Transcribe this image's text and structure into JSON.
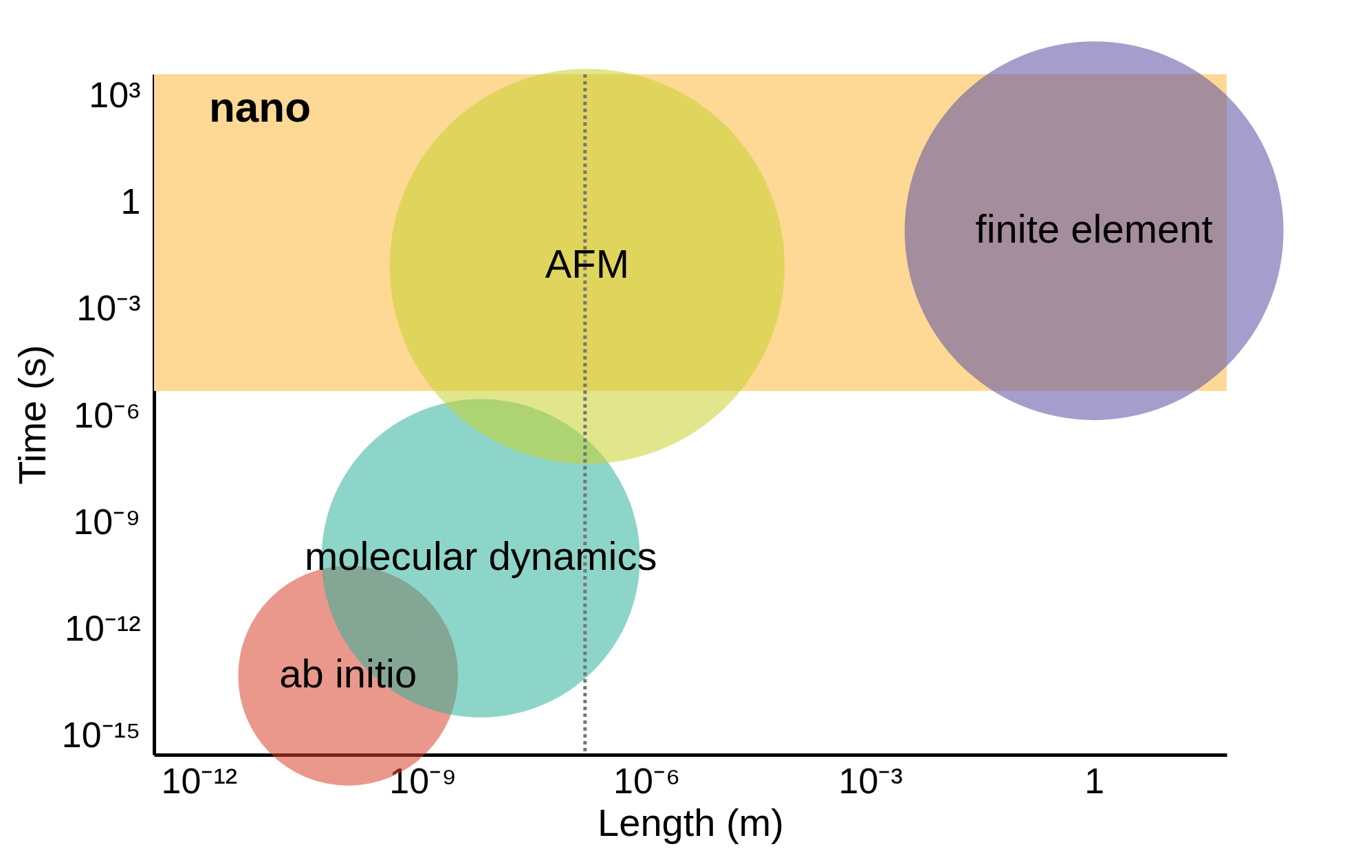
{
  "chart_data": {
    "type": "bubble",
    "xlabel": "Length (m)",
    "ylabel": "Time (s)",
    "log": "xy",
    "xlim": [
      2.5e-13,
      60
    ],
    "ylim": [
      3e-16,
      4000
    ],
    "xticks": [
      {
        "value": 1e-12,
        "label": "10⁻¹²"
      },
      {
        "value": 1e-09,
        "label": "10⁻⁹"
      },
      {
        "value": 1e-06,
        "label": "10⁻⁶"
      },
      {
        "value": 0.001,
        "label": "10⁻³"
      },
      1
    ],
    "yticks": [
      {
        "value": 1000,
        "label": "10³"
      },
      1,
      {
        "value": 0.001,
        "label": "10⁻³"
      },
      {
        "value": 1e-06,
        "label": "10⁻⁶"
      },
      {
        "value": 1e-09,
        "label": "10⁻⁹"
      },
      {
        "value": 1e-12,
        "label": "10⁻¹²"
      },
      {
        "value": 1e-15,
        "label": "10⁻¹⁵"
      }
    ],
    "series": [
      {
        "name": "ab initio",
        "color": "#d9442e",
        "x": [
          1e-10
        ],
        "values": [
          5e-14
        ],
        "sizes": [
          0.31
        ]
      },
      {
        "name": "molecular dynamics",
        "color": "#2fb39a",
        "x": [
          6e-09
        ],
        "values": [
          1e-10
        ],
        "sizes": [
          0.65
        ]
      },
      {
        "name": "AFM",
        "color": "#c8d22e",
        "x": [
          1.6e-07
        ],
        "values": [
          0.016
        ],
        "sizes": [
          1
        ]
      },
      {
        "name": "finite element",
        "color": "#5b4fa3",
        "x": [
          1
        ],
        "values": [
          0.16
        ],
        "sizes": [
          0.92
        ]
      }
    ],
    "ref_lines": [
      {
        "axis": "x",
        "value": 1.5e-07,
        "color": "#777777",
        "line_style": "dotted"
      }
    ],
    "bands": [
      {
        "axis": "y",
        "from": 5e-06,
        "to": 4000,
        "label": "nano",
        "color": "#fdd995"
      }
    ]
  }
}
